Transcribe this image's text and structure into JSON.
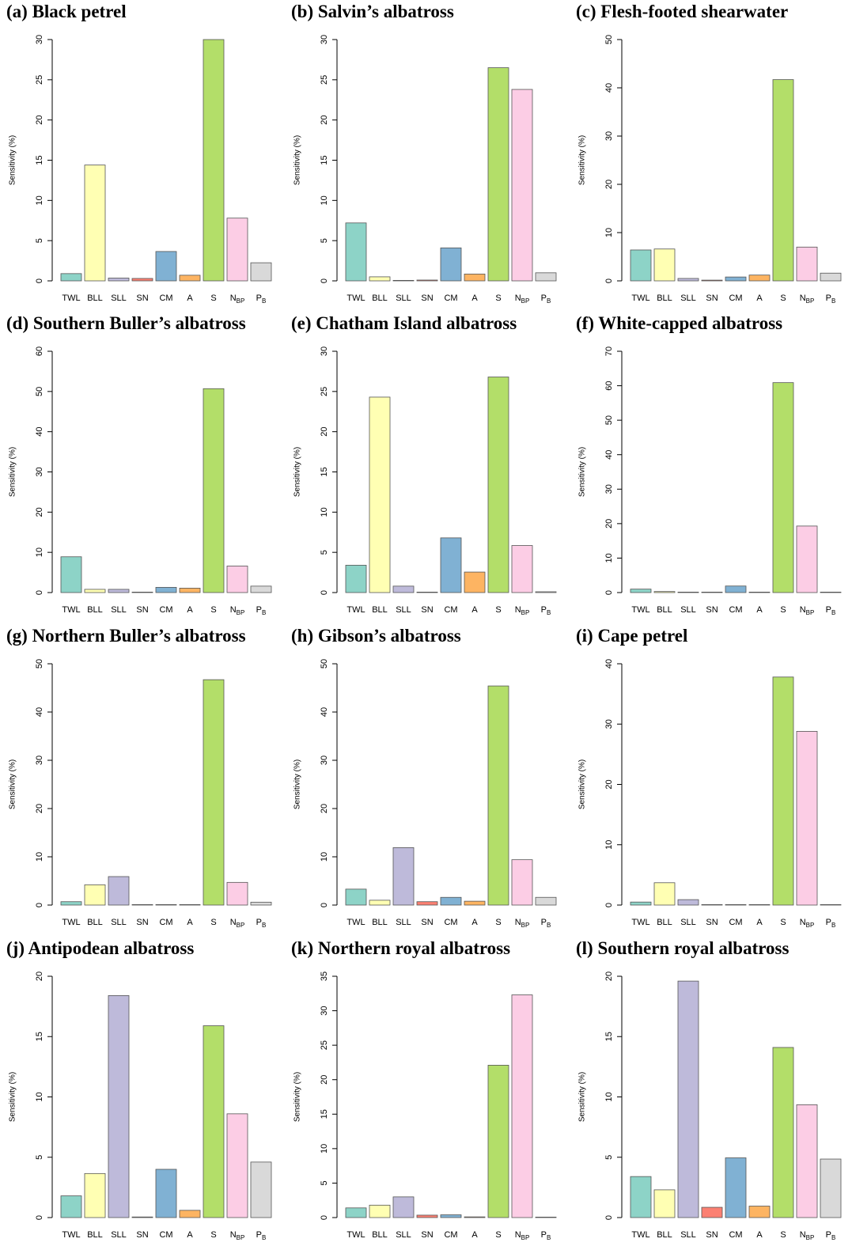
{
  "figure": {
    "categories": [
      "TWL",
      "BLL",
      "SLL",
      "SN",
      "CM",
      "A",
      "S",
      "N_BP",
      "P_B"
    ],
    "category_labels": [
      {
        "main": "TWL",
        "sub": ""
      },
      {
        "main": "BLL",
        "sub": ""
      },
      {
        "main": "SLL",
        "sub": ""
      },
      {
        "main": "SN",
        "sub": ""
      },
      {
        "main": "CM",
        "sub": ""
      },
      {
        "main": "A",
        "sub": ""
      },
      {
        "main": "S",
        "sub": ""
      },
      {
        "main": "N",
        "sub": "BP"
      },
      {
        "main": "P",
        "sub": "B"
      }
    ],
    "colors": [
      "#8dd3c7",
      "#ffffb3",
      "#bebada",
      "#fb8072",
      "#80b1d3",
      "#fdb462",
      "#b3de69",
      "#fccde5",
      "#d9d9d9"
    ]
  },
  "chart_data": [
    {
      "type": "bar",
      "title": "(a) Black petrel",
      "ylabel": "Sensitivity (%)",
      "ylim": [
        0,
        30
      ],
      "yticks": [
        0,
        5,
        10,
        15,
        20,
        25,
        30
      ],
      "values": [
        0.9,
        14.4,
        0.35,
        0.3,
        3.65,
        0.7,
        30.0,
        7.8,
        2.25
      ]
    },
    {
      "type": "bar",
      "title": "(b) Salvin’s albatross",
      "ylabel": "Sensitivity (%)",
      "ylim": [
        0,
        30
      ],
      "yticks": [
        0,
        5,
        10,
        15,
        20,
        25,
        30
      ],
      "values": [
        7.2,
        0.5,
        0.05,
        0.1,
        4.1,
        0.85,
        26.5,
        23.8,
        1.0
      ]
    },
    {
      "type": "bar",
      "title": "(c) Flesh-footed shearwater",
      "ylabel": "Sensitivity (%)",
      "ylim": [
        0,
        50
      ],
      "yticks": [
        0,
        10,
        20,
        30,
        40,
        50
      ],
      "values": [
        6.4,
        6.6,
        0.5,
        0.15,
        0.8,
        1.2,
        41.7,
        7.0,
        1.6
      ]
    },
    {
      "type": "bar",
      "title": "(d) Southern Buller’s albatross",
      "ylabel": "Sensitivity (%)",
      "ylim": [
        0,
        60
      ],
      "yticks": [
        0,
        10,
        20,
        30,
        40,
        50,
        60
      ],
      "values": [
        8.9,
        0.8,
        0.8,
        0.1,
        1.3,
        1.1,
        50.7,
        6.6,
        1.6
      ]
    },
    {
      "type": "bar",
      "title": "(e) Chatham Island albatross",
      "ylabel": "Sensitivity (%)",
      "ylim": [
        0,
        30
      ],
      "yticks": [
        0,
        5,
        10,
        15,
        20,
        25,
        30
      ],
      "values": [
        3.4,
        24.3,
        0.8,
        0.05,
        6.8,
        2.55,
        26.8,
        5.85,
        0.1
      ]
    },
    {
      "type": "bar",
      "title": "(f) White-capped albatross",
      "ylabel": "Sensitivity (%)",
      "ylim": [
        0,
        70
      ],
      "yticks": [
        0,
        10,
        20,
        30,
        40,
        50,
        60,
        70
      ],
      "values": [
        1.0,
        0.3,
        0.1,
        0.1,
        1.9,
        0.1,
        60.9,
        19.3,
        0.1
      ]
    },
    {
      "type": "bar",
      "title": "(g) Northern Buller’s albatross",
      "ylabel": "Sensitivity (%)",
      "ylim": [
        0,
        50
      ],
      "yticks": [
        0,
        10,
        20,
        30,
        40,
        50
      ],
      "values": [
        0.7,
        4.2,
        5.9,
        0.1,
        0.1,
        0.1,
        46.7,
        4.7,
        0.6
      ]
    },
    {
      "type": "bar",
      "title": "(h) Gibson’s albatross",
      "ylabel": "Sensitivity (%)",
      "ylim": [
        0,
        50
      ],
      "yticks": [
        0,
        10,
        20,
        30,
        40,
        50
      ],
      "values": [
        3.3,
        1.0,
        11.9,
        0.7,
        1.6,
        0.8,
        45.4,
        9.4,
        1.6
      ]
    },
    {
      "type": "bar",
      "title": "(i) Cape petrel",
      "ylabel": "Sensitivity (%)",
      "ylim": [
        0,
        40
      ],
      "yticks": [
        0,
        10,
        20,
        30,
        40
      ],
      "values": [
        0.5,
        3.7,
        0.9,
        0.05,
        0.05,
        0.05,
        37.8,
        28.8,
        0.05
      ]
    },
    {
      "type": "bar",
      "title": "(j) Antipodean albatross",
      "ylabel": "Sensitivity (%)",
      "ylim": [
        0,
        20
      ],
      "yticks": [
        0,
        5,
        10,
        15,
        20
      ],
      "values": [
        1.8,
        3.65,
        18.4,
        0.05,
        4.0,
        0.6,
        15.9,
        8.6,
        4.6
      ]
    },
    {
      "type": "bar",
      "title": "(k) Northern royal albatross",
      "ylabel": "Sensitivity (%)",
      "ylim": [
        0,
        35
      ],
      "yticks": [
        0,
        5,
        10,
        15,
        20,
        25,
        30,
        35
      ],
      "values": [
        1.4,
        1.8,
        3.0,
        0.35,
        0.4,
        0.1,
        22.1,
        32.3,
        0.05
      ]
    },
    {
      "type": "bar",
      "title": "(l) Southern royal albatross",
      "ylabel": "Sensitivity (%)",
      "ylim": [
        0,
        20
      ],
      "yticks": [
        0,
        5,
        10,
        15,
        20
      ],
      "values": [
        3.4,
        2.3,
        19.6,
        0.85,
        4.95,
        0.95,
        14.1,
        9.35,
        4.85
      ]
    }
  ]
}
